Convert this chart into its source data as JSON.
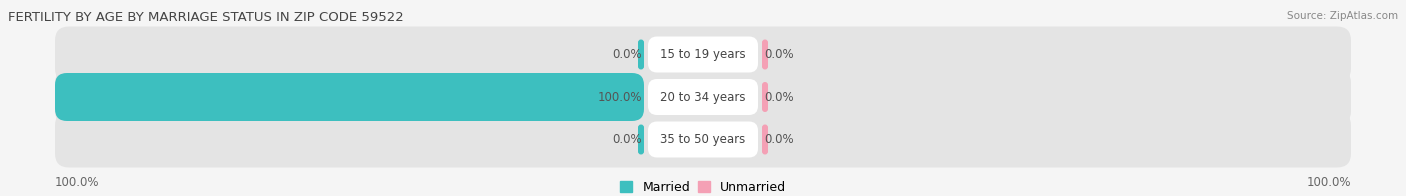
{
  "title": "FERTILITY BY AGE BY MARRIAGE STATUS IN ZIP CODE 59522",
  "source": "Source: ZipAtlas.com",
  "rows": [
    {
      "label": "15 to 19 years",
      "married": 0.0,
      "unmarried": 0.0
    },
    {
      "label": "20 to 34 years",
      "married": 100.0,
      "unmarried": 0.0
    },
    {
      "label": "35 to 50 years",
      "married": 0.0,
      "unmarried": 0.0
    }
  ],
  "married_color": "#3dbfbf",
  "unmarried_color": "#f4a0b5",
  "bar_bg_color": "#e4e4e4",
  "bar_bg_color_light": "#ececec",
  "background_color": "#f5f5f5",
  "max_value": 100.0,
  "left_axis_label": "100.0%",
  "right_axis_label": "100.0%",
  "title_fontsize": 9.5,
  "label_fontsize": 8.5,
  "tick_fontsize": 8.5,
  "legend_fontsize": 9,
  "small_bar_width": 6
}
